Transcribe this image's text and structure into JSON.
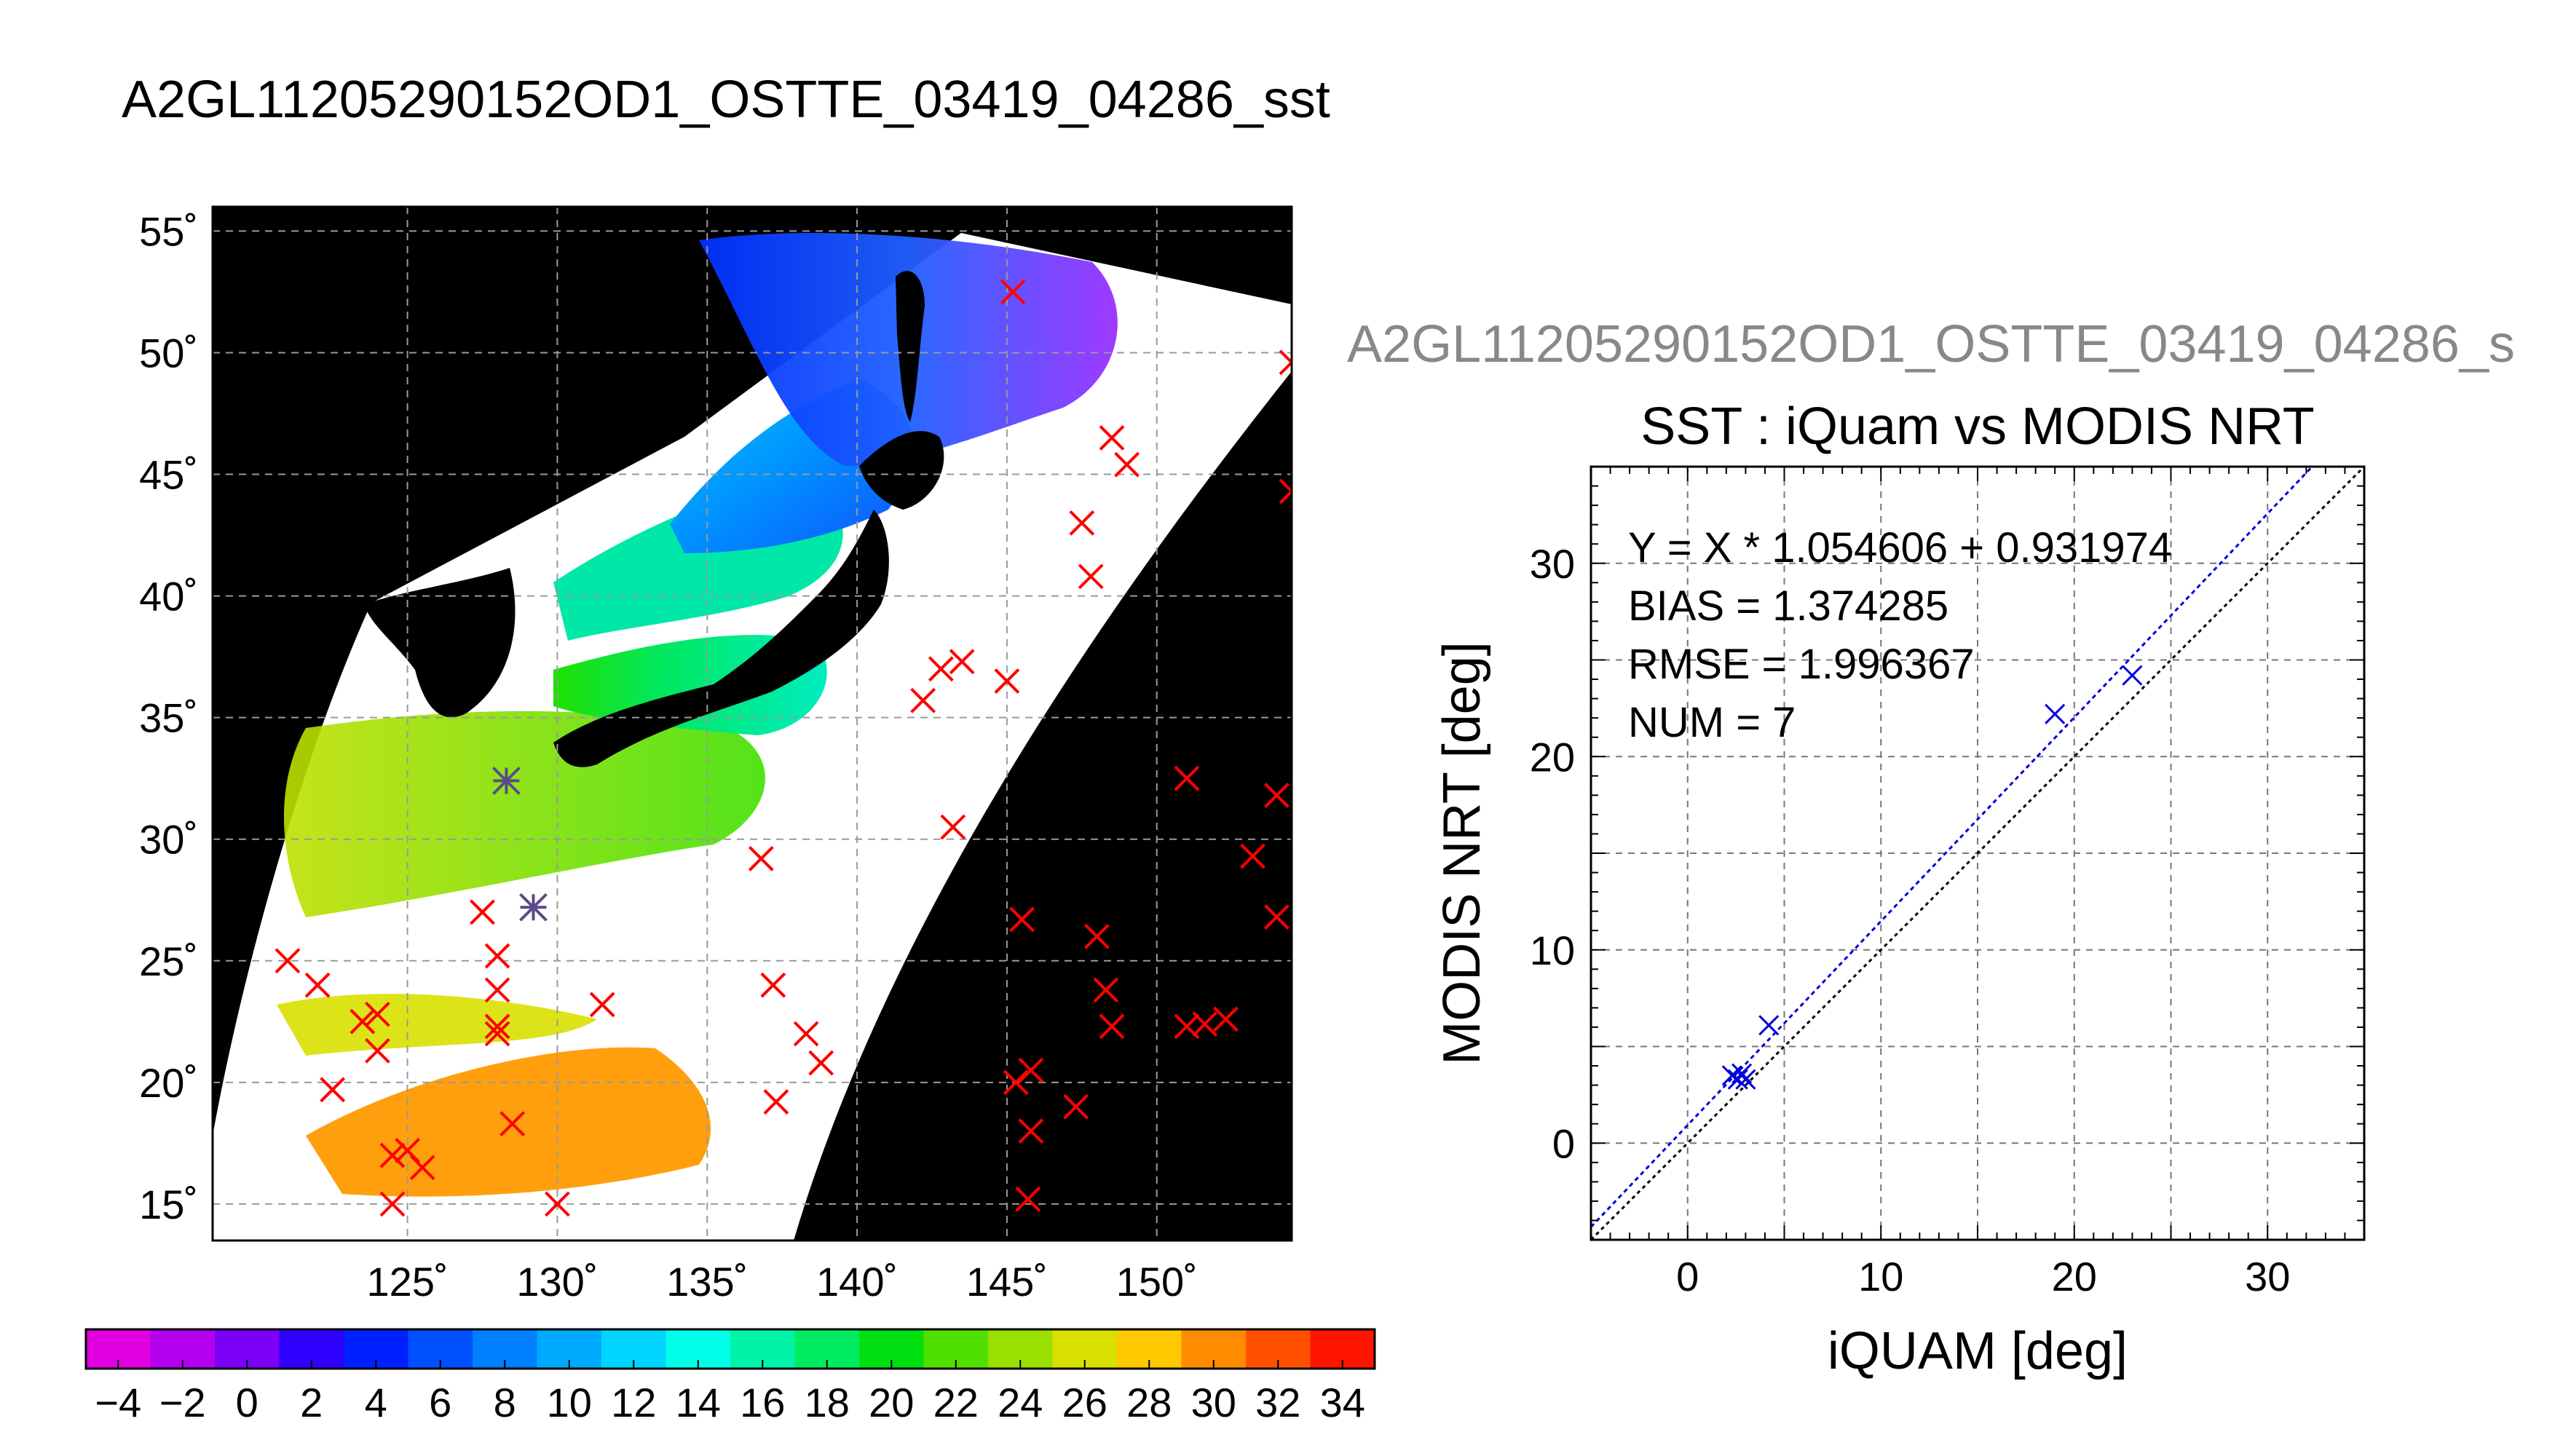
{
  "page": {
    "main_title": "A2GL11205290152OD1_OSTTE_03419_04286_sst",
    "side_title": "A2GL11205290152OD1_OSTTE_03419_04286_s"
  },
  "chart_data": [
    {
      "type": "map",
      "lat_ticks": [
        15,
        20,
        25,
        30,
        35,
        40,
        45,
        50,
        55
      ],
      "lon_ticks": [
        125,
        130,
        135,
        140,
        145,
        150
      ],
      "lat_range": [
        13.5,
        56
      ],
      "lon_range": [
        118.5,
        154.5
      ],
      "lat_tick_labels": [
        "15˚",
        "20˚",
        "25˚",
        "30˚",
        "35˚",
        "40˚",
        "45˚",
        "50˚",
        "55˚"
      ],
      "lon_tick_labels": [
        "125˚",
        "130˚",
        "135˚",
        "140˚",
        "145˚",
        "150˚"
      ],
      "grid": true,
      "marker_color": "#ff0000",
      "in_situ_markers": [
        [
          121,
          25
        ],
        [
          122,
          24
        ],
        [
          123.5,
          22.5
        ],
        [
          124,
          21.3
        ],
        [
          124,
          22.8
        ],
        [
          122.5,
          19.7
        ],
        [
          124.5,
          17
        ],
        [
          125,
          17.2
        ],
        [
          125.5,
          16.5
        ],
        [
          124.5,
          15
        ],
        [
          128,
          25.2
        ],
        [
          128,
          23.8
        ],
        [
          128,
          22.3
        ],
        [
          128,
          22
        ],
        [
          127.5,
          27
        ],
        [
          128.5,
          18.3
        ],
        [
          130,
          15
        ],
        [
          131.5,
          23.2
        ],
        [
          136.8,
          29.2
        ],
        [
          137.2,
          24
        ],
        [
          137.3,
          19.2
        ],
        [
          138.3,
          22
        ],
        [
          138.8,
          20.8
        ],
        [
          142.2,
          35.7
        ],
        [
          142.8,
          37
        ],
        [
          143.5,
          37.3
        ],
        [
          145,
          36.5
        ],
        [
          143.2,
          30.5
        ],
        [
          145.5,
          26.7
        ],
        [
          145.3,
          20
        ],
        [
          145.8,
          20.5
        ],
        [
          145.8,
          18
        ],
        [
          145.7,
          15.2
        ],
        [
          147.3,
          19
        ],
        [
          148,
          26
        ],
        [
          148.3,
          23.8
        ],
        [
          148.5,
          22.3
        ],
        [
          147.5,
          43
        ],
        [
          147.8,
          40.8
        ],
        [
          148.5,
          46.5
        ],
        [
          149,
          45.4
        ],
        [
          145.2,
          52.5
        ],
        [
          151,
          32.5
        ],
        [
          151,
          22.3
        ],
        [
          151.6,
          22.4
        ],
        [
          152.3,
          22.6
        ],
        [
          153.2,
          29.3
        ],
        [
          154,
          31.8
        ],
        [
          154,
          26.8
        ],
        [
          154.5,
          49.6
        ],
        [
          154.5,
          44.3
        ]
      ],
      "matchup_markers": [
        [
          128.3,
          32.4
        ],
        [
          129.2,
          27.2
        ]
      ],
      "matchup_color": "#5a4a8a"
    },
    {
      "type": "colorbar",
      "range": [
        -5,
        35
      ],
      "tick_values": [
        -4,
        -2,
        0,
        2,
        4,
        6,
        8,
        10,
        12,
        14,
        16,
        18,
        20,
        22,
        24,
        26,
        28,
        30,
        32,
        34
      ],
      "tick_labels": [
        "−4",
        "−2",
        "0",
        "2",
        "4",
        "6",
        "8",
        "10",
        "12",
        "14",
        "16",
        "18",
        "20",
        "22",
        "24",
        "26",
        "28",
        "30",
        "32",
        "34"
      ],
      "colors": [
        "#e000e0",
        "#b400ee",
        "#7b00f5",
        "#3000ff",
        "#0020ff",
        "#0050ff",
        "#0080ff",
        "#00aaff",
        "#00d4ff",
        "#00ffe8",
        "#00f4a8",
        "#00ec60",
        "#00e010",
        "#50e000",
        "#9ae000",
        "#d8e000",
        "#ffc800",
        "#ff8c00",
        "#ff5000",
        "#ff1400"
      ]
    },
    {
      "type": "scatter",
      "title": "SST : iQuam vs MODIS NRT",
      "xlabel": "iQUAM [deg]",
      "ylabel": "MODIS NRT [deg]",
      "xlim": [
        -5,
        35
      ],
      "ylim": [
        -5,
        35
      ],
      "x_ticks": [
        0,
        10,
        20,
        30
      ],
      "y_ticks": [
        0,
        10,
        20,
        30
      ],
      "grid": true,
      "annotations": [
        "Y = X * 1.054606 + 0.931974",
        "BIAS = 1.374285",
        "RMSE = 1.996367",
        "NUM = 7"
      ],
      "points": [
        [
          2.3,
          3.5
        ],
        [
          2.6,
          3.3
        ],
        [
          2.8,
          3.6
        ],
        [
          3.0,
          3.3
        ],
        [
          4.2,
          6.1
        ],
        [
          19,
          22.2
        ],
        [
          23,
          24.2
        ]
      ],
      "fit_line": {
        "slope": 1.054606,
        "intercept": 0.931974,
        "color": "#0000dd"
      },
      "identity_line": {
        "color": "#000000"
      },
      "marker_color": "#0000dd"
    }
  ]
}
